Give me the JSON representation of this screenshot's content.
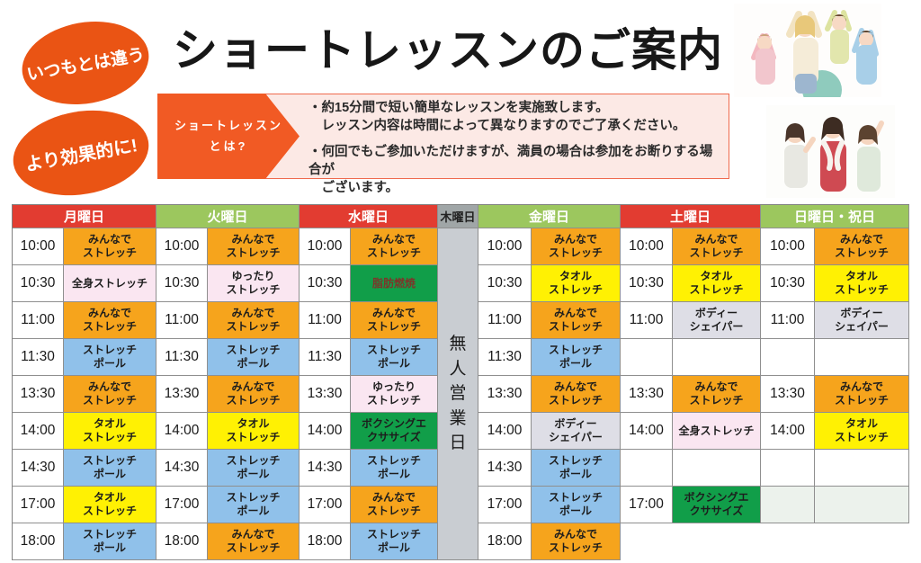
{
  "badges": [
    {
      "label": "いつもとは違う"
    },
    {
      "label": "より効果的に!"
    }
  ],
  "title": "ショートレッスンのご案内",
  "info": {
    "arrow_label_line1": "ショートレッスン",
    "arrow_label_line2": "とは?",
    "bullets": [
      "・約15分間で短い簡単なレッスンを実施致します。\n　レッスン内容は時間によって異なりますのでご了承ください。",
      "・何回でもご参加いただけますが、満員の場合は参加をお断りする場合が\n　ございます。"
    ]
  },
  "photos": [
    {
      "name": "stretching-group-photo"
    },
    {
      "name": "towel-group-photo"
    }
  ],
  "palette": {
    "accent_orange": "#ea5414",
    "arrow_orange": "#f15a24",
    "info_bg": "#fce9e5",
    "header_red": "#e23c31",
    "header_green": "#9cc75e",
    "header_text": "#ffffff",
    "thu_header_bg": "#a0a6a7",
    "thu_header_text": "#222222",
    "thu_body_bg": "#c9cdd2",
    "orange": "#f6a41c",
    "yellow": "#fff103",
    "blue": "#90c1ea",
    "pink": "#fae6f1",
    "green": "#119e49",
    "gray": "#dedee6",
    "empty": "#ffffff",
    "tint": "#ecf2ec"
  },
  "schedule": {
    "closed_day": {
      "header": "木曜日",
      "header_style": "thu",
      "label": "無人営業日"
    },
    "days": [
      {
        "header": "月曜日",
        "header_style": "red",
        "slots": [
          {
            "time": "10:00",
            "lesson": "みんなで\nストレッチ",
            "style": "orange"
          },
          {
            "time": "10:30",
            "lesson": "全身ストレッチ",
            "style": "pink"
          },
          {
            "time": "11:00",
            "lesson": "みんなで\nストレッチ",
            "style": "orange"
          },
          {
            "time": "11:30",
            "lesson": "ストレッチ\nポール",
            "style": "blue"
          },
          {
            "time": "13:30",
            "lesson": "みんなで\nストレッチ",
            "style": "orange"
          },
          {
            "time": "14:00",
            "lesson": "タオル\nストレッチ",
            "style": "yellow"
          },
          {
            "time": "14:30",
            "lesson": "ストレッチ\nポール",
            "style": "blue"
          },
          {
            "time": "17:00",
            "lesson": "タオル\nストレッチ",
            "style": "yellow"
          },
          {
            "time": "18:00",
            "lesson": "ストレッチ\nポール",
            "style": "blue"
          }
        ]
      },
      {
        "header": "火曜日",
        "header_style": "green",
        "slots": [
          {
            "time": "10:00",
            "lesson": "みんなで\nストレッチ",
            "style": "orange"
          },
          {
            "time": "10:30",
            "lesson": "ゆったり\nストレッチ",
            "style": "pink"
          },
          {
            "time": "11:00",
            "lesson": "みんなで\nストレッチ",
            "style": "orange"
          },
          {
            "time": "11:30",
            "lesson": "ストレッチ\nポール",
            "style": "blue"
          },
          {
            "time": "13:30",
            "lesson": "みんなで\nストレッチ",
            "style": "orange"
          },
          {
            "time": "14:00",
            "lesson": "タオル\nストレッチ",
            "style": "yellow"
          },
          {
            "time": "14:30",
            "lesson": "ストレッチ\nポール",
            "style": "blue"
          },
          {
            "time": "17:00",
            "lesson": "ストレッチ\nポール",
            "style": "blue"
          },
          {
            "time": "18:00",
            "lesson": "みんなで\nストレッチ",
            "style": "orange"
          }
        ]
      },
      {
        "header": "水曜日",
        "header_style": "red",
        "slots": [
          {
            "time": "10:00",
            "lesson": "みんなで\nストレッチ",
            "style": "orange"
          },
          {
            "time": "10:30",
            "lesson": "脂肪燃焼",
            "style": "green",
            "text_color": "#7d352a"
          },
          {
            "time": "11:00",
            "lesson": "みんなで\nストレッチ",
            "style": "orange"
          },
          {
            "time": "11:30",
            "lesson": "ストレッチ\nポール",
            "style": "blue"
          },
          {
            "time": "13:30",
            "lesson": "ゆったり\nストレッチ",
            "style": "pink"
          },
          {
            "time": "14:00",
            "lesson": "ボクシングエ\nクササイズ",
            "style": "green"
          },
          {
            "time": "14:30",
            "lesson": "ストレッチ\nポール",
            "style": "blue"
          },
          {
            "time": "17:00",
            "lesson": "みんなで\nストレッチ",
            "style": "orange"
          },
          {
            "time": "18:00",
            "lesson": "ストレッチ\nポール",
            "style": "blue"
          }
        ]
      },
      {
        "header": "金曜日",
        "header_style": "green",
        "slots": [
          {
            "time": "10:00",
            "lesson": "みんなで\nストレッチ",
            "style": "orange"
          },
          {
            "time": "10:30",
            "lesson": "タオル\nストレッチ",
            "style": "yellow"
          },
          {
            "time": "11:00",
            "lesson": "みんなで\nストレッチ",
            "style": "orange"
          },
          {
            "time": "11:30",
            "lesson": "ストレッチ\nポール",
            "style": "blue"
          },
          {
            "time": "13:30",
            "lesson": "みんなで\nストレッチ",
            "style": "orange"
          },
          {
            "time": "14:00",
            "lesson": "ボディー\nシェイパー",
            "style": "gray"
          },
          {
            "time": "14:30",
            "lesson": "ストレッチ\nポール",
            "style": "blue"
          },
          {
            "time": "17:00",
            "lesson": "ストレッチ\nポール",
            "style": "blue"
          },
          {
            "time": "18:00",
            "lesson": "みんなで\nストレッチ",
            "style": "orange"
          }
        ]
      },
      {
        "header": "土曜日",
        "header_style": "red",
        "slots": [
          {
            "time": "10:00",
            "lesson": "みんなで\nストレッチ",
            "style": "orange"
          },
          {
            "time": "10:30",
            "lesson": "タオル\nストレッチ",
            "style": "yellow"
          },
          {
            "time": "11:00",
            "lesson": "ボディー\nシェイパー",
            "style": "gray"
          },
          {
            "time": "",
            "lesson": "",
            "style": "empty"
          },
          {
            "time": "13:30",
            "lesson": "みんなで\nストレッチ",
            "style": "orange"
          },
          {
            "time": "14:00",
            "lesson": "全身ストレッチ",
            "style": "pink"
          },
          {
            "time": "",
            "lesson": "",
            "style": "empty"
          },
          {
            "time": "17:00",
            "lesson": "ボクシングエ\nクササイズ",
            "style": "green"
          },
          {
            "time": "",
            "lesson": "",
            "style": "none"
          }
        ]
      },
      {
        "header": "日曜日・祝日",
        "header_style": "green",
        "slots": [
          {
            "time": "10:00",
            "lesson": "みんなで\nストレッチ",
            "style": "orange"
          },
          {
            "time": "10:30",
            "lesson": "タオル\nストレッチ",
            "style": "yellow"
          },
          {
            "time": "11:00",
            "lesson": "ボディー\nシェイパー",
            "style": "gray"
          },
          {
            "time": "",
            "lesson": "",
            "style": "empty"
          },
          {
            "time": "13:30",
            "lesson": "みんなで\nストレッチ",
            "style": "orange"
          },
          {
            "time": "14:00",
            "lesson": "タオル\nストレッチ",
            "style": "yellow"
          },
          {
            "time": "",
            "lesson": "",
            "style": "empty"
          },
          {
            "time": "",
            "lesson": "",
            "style": "tint"
          },
          {
            "time": "",
            "lesson": "",
            "style": "none"
          }
        ]
      }
    ]
  }
}
